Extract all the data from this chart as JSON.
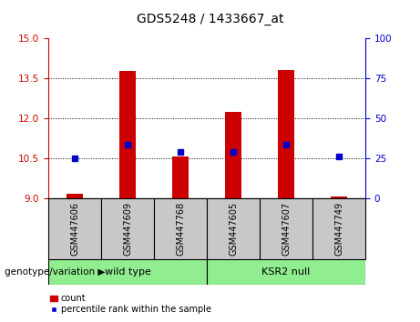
{
  "title": "GDS5248 / 1433667_at",
  "samples": [
    "GSM447606",
    "GSM447609",
    "GSM447768",
    "GSM447605",
    "GSM447607",
    "GSM447749"
  ],
  "count_values": [
    9.15,
    13.8,
    10.55,
    12.25,
    13.82,
    9.05
  ],
  "percentile_values": [
    10.5,
    11.0,
    10.75,
    10.72,
    11.0,
    10.55
  ],
  "bar_bottom": 9,
  "ylim_left": [
    9,
    15
  ],
  "ylim_right": [
    0,
    100
  ],
  "yticks_left": [
    9,
    10.5,
    12,
    13.5,
    15
  ],
  "yticks_right": [
    0,
    25,
    50,
    75,
    100
  ],
  "grid_lines": [
    10.5,
    12,
    13.5
  ],
  "left_tick_color": "#CC0000",
  "right_tick_color": "#0000CC",
  "bar_color": "#CC0000",
  "dot_color": "#0000CC",
  "bg_label": "#c8c8c8",
  "bg_group": "#90EE90",
  "bar_width": 0.3,
  "title_fontsize": 10,
  "tick_fontsize": 7.5,
  "sample_fontsize": 7,
  "group_fontsize": 8,
  "legend_fontsize": 7,
  "geno_fontsize": 7.5,
  "wt_label": "wild type",
  "ksr_label": "KSR2 null",
  "geno_label": "genotype/variation",
  "legend_count": "count",
  "legend_pct": "percentile rank within the sample"
}
